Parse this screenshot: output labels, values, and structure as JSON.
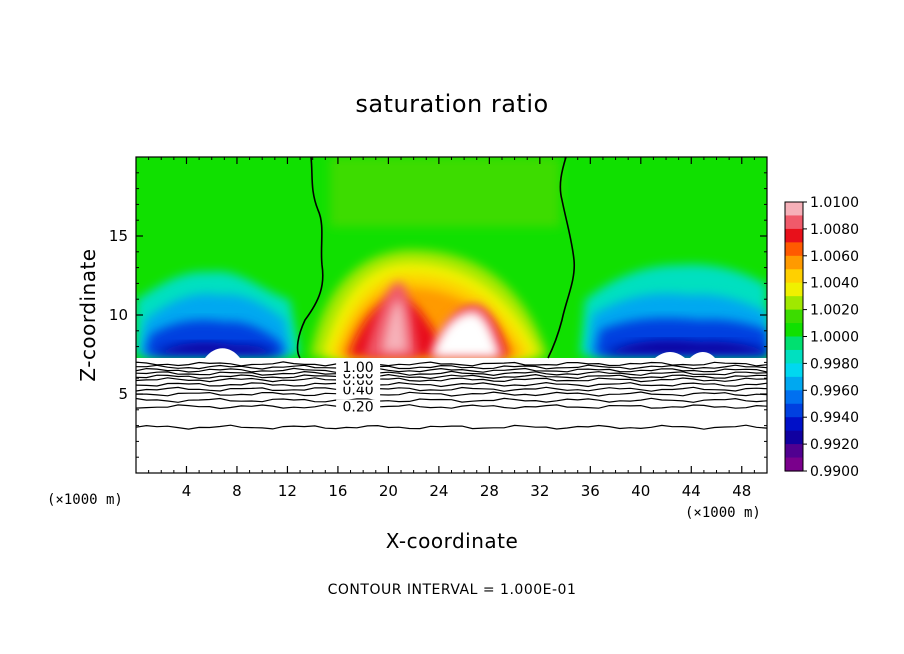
{
  "chart_data": {
    "type": "heatmap",
    "title": "saturation ratio",
    "xlabel": "X-coordinate",
    "ylabel": "Z-coordinate",
    "x_unit": "(×1000 m)",
    "xlim": [
      0,
      50
    ],
    "ylim": [
      0,
      20
    ],
    "x_ticks": [
      4,
      8,
      12,
      16,
      20,
      24,
      28,
      32,
      36,
      40,
      44,
      48
    ],
    "y_ticks": [
      5,
      10,
      15
    ],
    "colorbar": {
      "min": 0.99,
      "max": 1.01,
      "labels": [
        "1.0100",
        "1.0080",
        "1.0060",
        "1.0040",
        "1.0020",
        "1.0000",
        "0.9980",
        "0.9960",
        "0.9940",
        "0.9920",
        "0.9900"
      ],
      "colors": [
        "#f6b0b8",
        "#f05a6a",
        "#e8101a",
        "#ff5a00",
        "#ff9a00",
        "#ffd000",
        "#f0f000",
        "#a0e800",
        "#3cdc00",
        "#10e000",
        "#00e070",
        "#00e0c0",
        "#00d8f0",
        "#00a8f0",
        "#0070f0",
        "#0040e0",
        "#0010c8",
        "#1000a0",
        "#500090",
        "#7a008c"
      ]
    },
    "contour_lines": [
      {
        "label": "0.20",
        "z": 4.2
      },
      {
        "label": "0.40",
        "z": 5.3
      },
      {
        "label": "0.60",
        "z": 5.9
      },
      {
        "label": "0.80",
        "z": 6.3
      },
      {
        "label": "1.00",
        "z": 6.7
      }
    ],
    "unlabeled_contours_z": [
      2.9,
      4.6,
      5.0,
      5.6,
      6.1,
      6.5,
      6.9
    ],
    "contour_interval": "CONTOUR INTERVAL = 1.000E-01",
    "footer": "CONTOUR INTERVAL = 1.000E-01"
  }
}
